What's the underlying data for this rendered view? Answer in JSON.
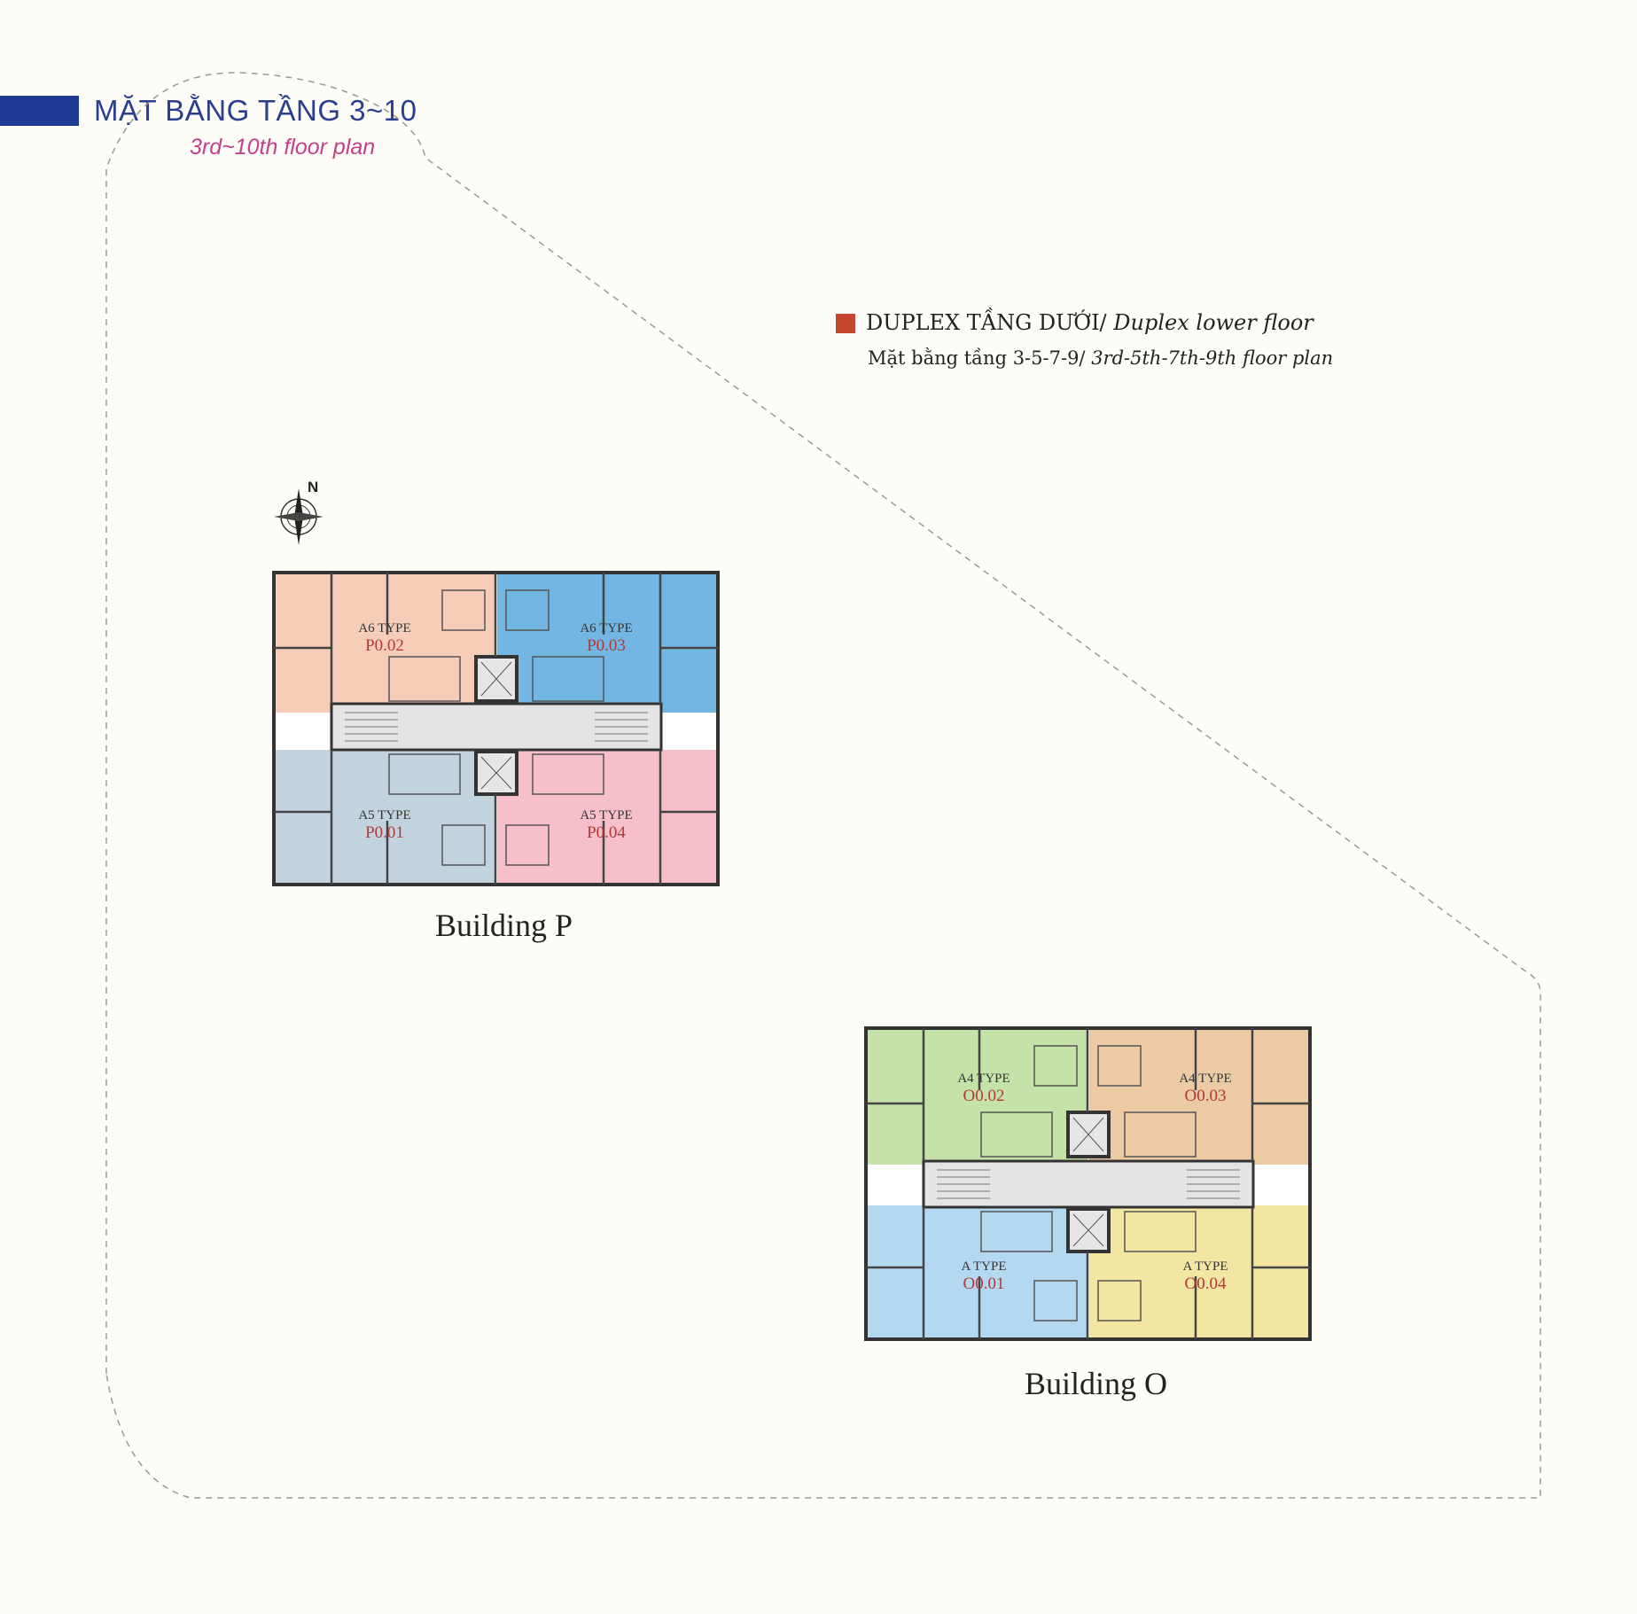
{
  "header": {
    "title_vi": "MẶT BẰNG TẦNG 3~10",
    "title_en": "3rd~10th floor plan",
    "accent_color": "#1f3a93"
  },
  "legend": {
    "color": "#c6452f",
    "label_vi": "DUPLEX TẦNG DƯỚI/",
    "label_en": "Duplex lower floor",
    "sub_vi": "Mặt bằng tầng 3-5-7-9/",
    "sub_en": "3rd-5th-7th-9th floor plan"
  },
  "compass": {
    "label": "N"
  },
  "buildings": [
    {
      "name": "Building P",
      "units": [
        {
          "type": "A6 TYPE",
          "code": "P0.02",
          "color": "#f6cdb8"
        },
        {
          "type": "A6 TYPE",
          "code": "P0.03",
          "color": "#72b6e3"
        },
        {
          "type": "A5 TYPE",
          "code": "P0.01",
          "color": "#c3d3de"
        },
        {
          "type": "A5 TYPE",
          "code": "P0.04",
          "color": "#f6bfc9"
        }
      ]
    },
    {
      "name": "Building O",
      "units": [
        {
          "type": "A4 TYPE",
          "code": "O0.02",
          "color": "#c5e3a8"
        },
        {
          "type": "A4 TYPE",
          "code": "O0.03",
          "color": "#eccba4"
        },
        {
          "type": "A TYPE",
          "code": "O0.01",
          "color": "#b4d8ef"
        },
        {
          "type": "A TYPE",
          "code": "O0.04",
          "color": "#f2e6a2"
        }
      ]
    }
  ]
}
